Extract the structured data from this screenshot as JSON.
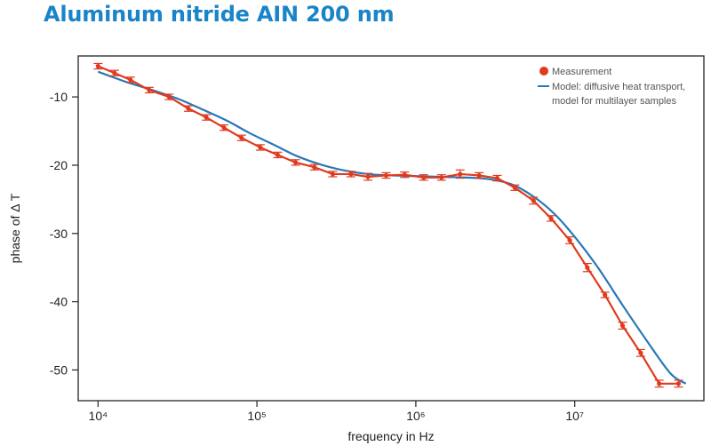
{
  "title": "Aluminum nitride AIN 200 nm",
  "colors": {
    "title": "#1a84c8",
    "measurement": "#e03a1e",
    "model": "#2878b8",
    "axis": "#333333"
  },
  "chart_data": {
    "type": "line",
    "xlabel": "frequency in Hz",
    "ylabel": "phase of Δ T",
    "x_scale": "log",
    "xlim": [
      7500,
      65000000
    ],
    "ylim": [
      -54.5,
      -4
    ],
    "x_ticks": [
      {
        "value": 10000,
        "label": "10⁴"
      },
      {
        "value": 100000,
        "label": "10⁵"
      },
      {
        "value": 1000000,
        "label": "10⁶"
      },
      {
        "value": 10000000,
        "label": "10⁷"
      }
    ],
    "y_ticks": [
      -10,
      -20,
      -30,
      -40,
      -50
    ],
    "grid": false,
    "legend_position": "top-right",
    "series": [
      {
        "name": "Measurement",
        "style": "line-with-error-bars",
        "x": [
          10000,
          12700,
          16000,
          21000,
          28000,
          37000,
          48000,
          62000,
          80000,
          105000,
          135000,
          175000,
          230000,
          300000,
          390000,
          500000,
          650000,
          850000,
          1120000,
          1450000,
          1900000,
          2500000,
          3250000,
          4200000,
          5500000,
          7100000,
          9300000,
          12000000,
          15500000,
          20000000,
          26000000,
          34000000,
          45000000
        ],
        "y": [
          -5.5,
          -6.5,
          -7.5,
          -9.0,
          -10.0,
          -11.7,
          -13.0,
          -14.5,
          -16.0,
          -17.4,
          -18.5,
          -19.6,
          -20.3,
          -21.3,
          -21.3,
          -21.7,
          -21.5,
          -21.4,
          -21.8,
          -21.8,
          -21.3,
          -21.5,
          -21.9,
          -23.3,
          -25.2,
          -27.8,
          -31.0,
          -35.0,
          -39.0,
          -43.5,
          -47.5,
          -52.0,
          -52.0
        ],
        "errors": [
          0.4,
          0.4,
          0.4,
          0.4,
          0.4,
          0.4,
          0.4,
          0.4,
          0.4,
          0.4,
          0.4,
          0.4,
          0.4,
          0.4,
          0.4,
          0.5,
          0.4,
          0.4,
          0.4,
          0.4,
          0.6,
          0.4,
          0.4,
          0.4,
          0.5,
          0.4,
          0.5,
          0.6,
          0.4,
          0.5,
          0.5,
          0.5,
          0.5
        ]
      },
      {
        "name": "Model: diffusive heat transport, model for multilayer samples",
        "name_lines": [
          "Model: diffusive heat transport,",
          "model for multilayer samples"
        ],
        "style": "smooth-line",
        "x": [
          10000,
          15000,
          22000,
          32000,
          45000,
          65000,
          90000,
          130000,
          180000,
          260000,
          360000,
          500000,
          700000,
          1000000,
          1400000,
          2000000,
          2800000,
          4000000,
          5500000,
          7500000,
          10000000,
          14000000,
          20000000,
          28000000,
          40000000,
          50000000
        ],
        "y": [
          -6.3,
          -7.8,
          -9.0,
          -10.3,
          -11.8,
          -13.5,
          -15.3,
          -17.1,
          -18.7,
          -20.0,
          -20.8,
          -21.3,
          -21.5,
          -21.6,
          -21.7,
          -21.8,
          -22.0,
          -22.8,
          -24.6,
          -27.2,
          -30.5,
          -35.0,
          -40.5,
          -45.5,
          -50.5,
          -52.0
        ]
      }
    ]
  }
}
